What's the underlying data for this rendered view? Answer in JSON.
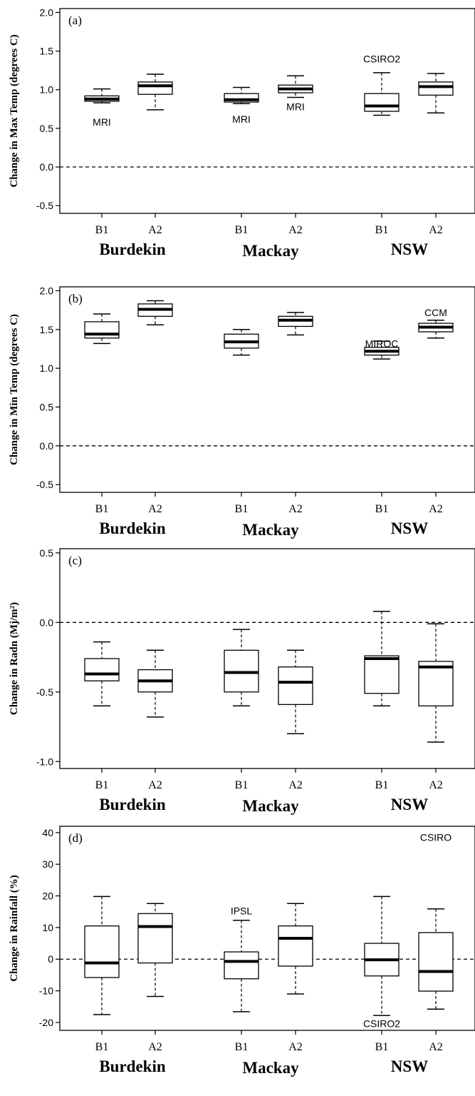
{
  "chart_data": [
    {
      "type": "box",
      "panel_label": "(a)",
      "ylabel": "Change in Max Temp (degrees C)",
      "ylim": [
        -0.6,
        2.05
      ],
      "yticks": [
        -0.5,
        0.0,
        0.5,
        1.0,
        1.5,
        2.0
      ],
      "ytick_labels": [
        "-0.5",
        "0.0",
        "0.5",
        "1.0",
        "1.5",
        "2.0"
      ],
      "reference_line": 0.0,
      "categories": [
        "B1",
        "A2",
        "B1",
        "A2",
        "B1",
        "A2"
      ],
      "groups": [
        "Burdekin",
        "Mackay",
        "NSW"
      ],
      "boxes": [
        {
          "min": 0.83,
          "q1": 0.85,
          "median": 0.88,
          "q3": 0.92,
          "max": 1.01
        },
        {
          "min": 0.74,
          "q1": 0.94,
          "median": 1.05,
          "q3": 1.1,
          "max": 1.2
        },
        {
          "min": 0.82,
          "q1": 0.84,
          "median": 0.87,
          "q3": 0.95,
          "max": 1.03
        },
        {
          "min": 0.9,
          "q1": 0.96,
          "median": 1.01,
          "q3": 1.06,
          "max": 1.18
        },
        {
          "min": 0.67,
          "q1": 0.72,
          "median": 0.79,
          "q3": 0.95,
          "max": 1.22
        },
        {
          "min": 0.7,
          "q1": 0.93,
          "median": 1.04,
          "q3": 1.1,
          "max": 1.21
        }
      ],
      "annotations": [
        {
          "text": "MRI",
          "box": 0,
          "y": 0.58
        },
        {
          "text": "MRI",
          "box": 2,
          "y": 0.62
        },
        {
          "text": "MRI",
          "box": 3,
          "y": 0.78
        },
        {
          "text": "CSIRO2",
          "box": 4,
          "y": 1.4
        }
      ]
    },
    {
      "type": "box",
      "panel_label": "(b)",
      "ylabel": "Change in Min Temp (degrees C)",
      "ylim": [
        -0.6,
        2.05
      ],
      "yticks": [
        -0.5,
        0.0,
        0.5,
        1.0,
        1.5,
        2.0
      ],
      "ytick_labels": [
        "-0.5",
        "0.0",
        "0.5",
        "1.0",
        "1.5",
        "2.0"
      ],
      "reference_line": 0.0,
      "categories": [
        "B1",
        "A2",
        "B1",
        "A2",
        "B1",
        "A2"
      ],
      "groups": [
        "Burdekin",
        "Mackay",
        "NSW"
      ],
      "boxes": [
        {
          "min": 1.32,
          "q1": 1.39,
          "median": 1.44,
          "q3": 1.6,
          "max": 1.7
        },
        {
          "min": 1.56,
          "q1": 1.67,
          "median": 1.76,
          "q3": 1.83,
          "max": 1.87
        },
        {
          "min": 1.17,
          "q1": 1.26,
          "median": 1.34,
          "q3": 1.44,
          "max": 1.5
        },
        {
          "min": 1.43,
          "q1": 1.54,
          "median": 1.62,
          "q3": 1.67,
          "max": 1.72
        },
        {
          "min": 1.12,
          "q1": 1.17,
          "median": 1.22,
          "q3": 1.27,
          "max": 1.35
        },
        {
          "min": 1.39,
          "q1": 1.47,
          "median": 1.53,
          "q3": 1.58,
          "max": 1.62
        }
      ],
      "annotations": [
        {
          "text": "MIROC",
          "box": 4,
          "y": 1.32
        },
        {
          "text": "CCM",
          "box": 5,
          "y": 1.72
        }
      ]
    },
    {
      "type": "box",
      "panel_label": "(c)",
      "ylabel": "Change in Radn (Mj/m²)",
      "ylim": [
        -1.05,
        0.53
      ],
      "yticks": [
        -1.0,
        -0.5,
        0.0,
        0.5
      ],
      "ytick_labels": [
        "-1.0",
        "-0.5",
        "0.0",
        "0.5"
      ],
      "reference_line": 0.0,
      "categories": [
        "B1",
        "A2",
        "B1",
        "A2",
        "B1",
        "A2"
      ],
      "groups": [
        "Burdekin",
        "Mackay",
        "NSW"
      ],
      "boxes": [
        {
          "min": -0.6,
          "q1": -0.42,
          "median": -0.37,
          "q3": -0.26,
          "max": -0.14
        },
        {
          "min": -0.68,
          "q1": -0.5,
          "median": -0.42,
          "q3": -0.34,
          "max": -0.2
        },
        {
          "min": -0.6,
          "q1": -0.5,
          "median": -0.36,
          "q3": -0.2,
          "max": -0.05
        },
        {
          "min": -0.8,
          "q1": -0.59,
          "median": -0.43,
          "q3": -0.32,
          "max": -0.2
        },
        {
          "min": -0.6,
          "q1": -0.51,
          "median": -0.26,
          "q3": -0.24,
          "max": 0.08
        },
        {
          "min": -0.86,
          "q1": -0.6,
          "median": -0.32,
          "q3": -0.28,
          "max": -0.01
        }
      ],
      "annotations": []
    },
    {
      "type": "box",
      "panel_label": "(d)",
      "ylabel": "Change in Rainfall (%)",
      "ylim": [
        -22.5,
        42
      ],
      "yticks": [
        -20,
        -10,
        0,
        10,
        20,
        30,
        40
      ],
      "ytick_labels": [
        "-20",
        "-10",
        "0",
        "10",
        "20",
        "30",
        "40"
      ],
      "reference_line": 0,
      "categories": [
        "B1",
        "A2",
        "B1",
        "A2",
        "B1",
        "A2"
      ],
      "groups": [
        "Burdekin",
        "Mackay",
        "NSW"
      ],
      "boxes": [
        {
          "min": -17.5,
          "q1": -5.8,
          "median": -1.2,
          "q3": 10.5,
          "max": 19.8
        },
        {
          "min": -11.8,
          "q1": -1.2,
          "median": 10.3,
          "q3": 14.4,
          "max": 17.6
        },
        {
          "min": -16.6,
          "q1": -6.2,
          "median": -0.7,
          "q3": 2.3,
          "max": 12.3
        },
        {
          "min": -11.0,
          "q1": -2.2,
          "median": 6.6,
          "q3": 10.5,
          "max": 17.6
        },
        {
          "min": -17.8,
          "q1": -5.3,
          "median": -0.2,
          "q3": 5.0,
          "max": 19.8
        },
        {
          "min": -15.8,
          "q1": -10.1,
          "median": -3.9,
          "q3": 8.4,
          "max": 15.9
        }
      ],
      "annotations": [
        {
          "text": "IPSL",
          "box": 2,
          "y": 15.3
        },
        {
          "text": "CSIRO",
          "box": 5,
          "y": 38.5
        },
        {
          "text": "CSIRO2",
          "box": 4,
          "y": -20.4
        }
      ]
    }
  ]
}
